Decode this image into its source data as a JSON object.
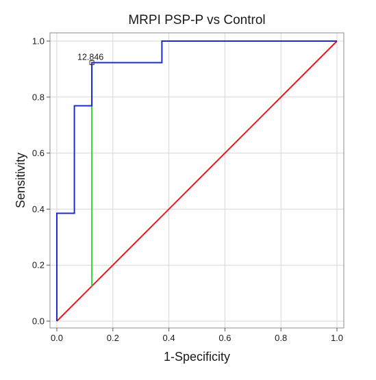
{
  "chart_data": {
    "type": "line",
    "title": "MRPI PSP-P vs Control",
    "xlabel": "1-Specificity",
    "ylabel": "Sensitivity",
    "xlim": [
      0,
      1
    ],
    "ylim": [
      0,
      1
    ],
    "grid": true,
    "xticks": [
      0.0,
      0.2,
      0.4,
      0.6,
      0.8,
      1.0
    ],
    "yticks": [
      0.0,
      0.2,
      0.4,
      0.6,
      0.8,
      1.0
    ],
    "xtick_labels": [
      "0.0",
      "0.2",
      "0.4",
      "0.6",
      "0.8",
      "1.0"
    ],
    "ytick_labels": [
      "0.0",
      "0.2",
      "0.4",
      "0.6",
      "0.8",
      "1.0"
    ],
    "series": [
      {
        "color": "#1c2bd0",
        "style": "step",
        "x": [
          0.0,
          0.0,
          0.0625,
          0.0625,
          0.125,
          0.125,
          0.375,
          0.375,
          1.0
        ],
        "y": [
          0.0,
          0.385,
          0.385,
          0.769,
          0.769,
          0.923,
          0.923,
          1.0,
          1.0
        ]
      },
      {
        "color": "#e01b1b",
        "style": "line",
        "x": [
          0.0,
          1.0
        ],
        "y": [
          0.0,
          1.0
        ]
      },
      {
        "color": "#3ad33a",
        "style": "line",
        "x": [
          0.125,
          0.125
        ],
        "y": [
          0.125,
          0.923
        ]
      }
    ],
    "annotations": [
      {
        "text": "12.846",
        "x": 0.125,
        "y": 0.923,
        "marker": "square"
      }
    ]
  }
}
